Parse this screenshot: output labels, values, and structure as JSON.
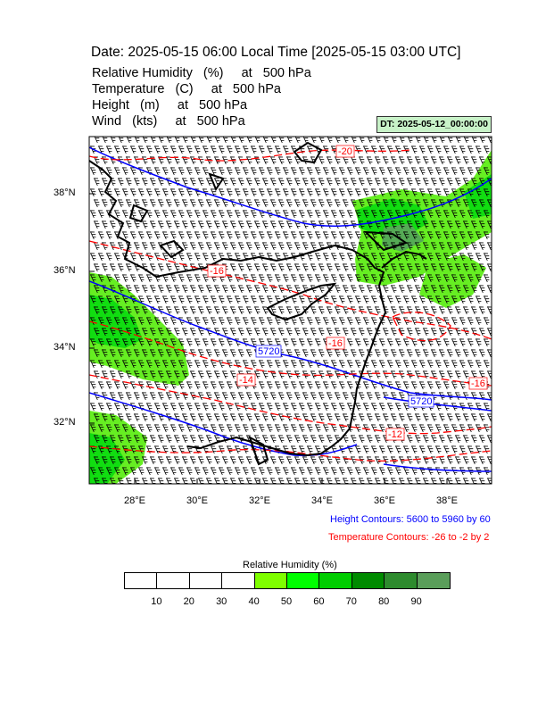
{
  "header": {
    "title": "Date: 2025-05-15  06:00 Local Time [2025-05-15  03:00 UTC]",
    "variables": [
      "Relative Humidity   (%)     at   500 hPa",
      "Temperature   (C)     at   500 hPa",
      "Height   (m)     at   500 hPa",
      "Wind   (kts)     at   500 hPa"
    ],
    "dt_label": "DT: 2025-05-12_00:00:00"
  },
  "map": {
    "lat_labels": [
      "38°N",
      "36°N",
      "34°N",
      "32°N"
    ],
    "lon_labels": [
      "28°E",
      "30°E",
      "32°E",
      "34°E",
      "36°E",
      "38°E"
    ],
    "height_contour_labels": [
      "5720",
      "5720"
    ],
    "temp_contour_labels": [
      "-20",
      "-16",
      "-16",
      "-14",
      "-16",
      "-12"
    ],
    "colors": {
      "height": "#0000ff",
      "temperature": "#ff0000",
      "coast": "#000000",
      "rh_green_light": "#66ee22",
      "rh_green": "#11dd11",
      "rh_green_dark": "#55aa55"
    }
  },
  "legend": {
    "height_contours": "Height Contours: 5600 to 5960 by 60",
    "temperature_contours": "Temperature Contours: -26 to -2 by 2"
  },
  "colorbar": {
    "title": "Relative Humidity  (%)",
    "colors": [
      "#ffffff",
      "#ffffff",
      "#ffffff",
      "#ffffff",
      "#7fff00",
      "#00ff00",
      "#00cd00",
      "#008b00",
      "#2e8b2e",
      "#5a9e5a"
    ],
    "labels": [
      "10",
      "20",
      "30",
      "40",
      "50",
      "60",
      "70",
      "80",
      "90"
    ]
  }
}
